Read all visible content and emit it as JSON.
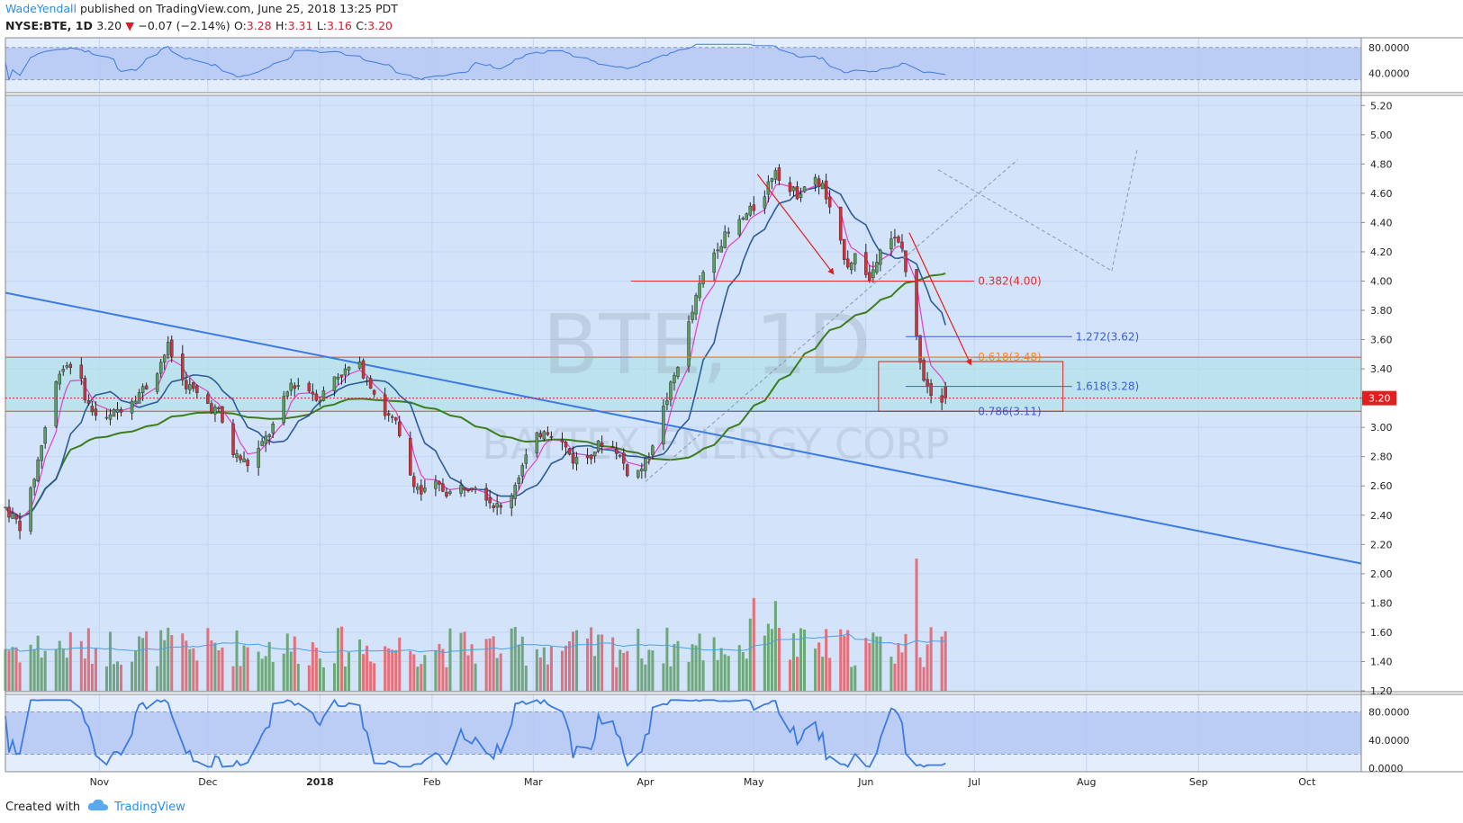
{
  "header": {
    "author": "WadeYendall",
    "published_text": "published on TradingView.com, June 25, 2018 13:25 PDT"
  },
  "symbol_line": {
    "symbol": "NYSE:BTE, 1D",
    "price": "3.20",
    "change": "−0.07 (−2.14%)",
    "o_label": "O:",
    "o": "3.28",
    "h_label": "H:",
    "h": "3.31",
    "l_label": "L:",
    "l": "3.16",
    "c_label": "C:",
    "c": "3.20"
  },
  "watermark": {
    "symbol": "BTE, 1D",
    "company": "BAYTEX ENERGY CORP"
  },
  "footer": {
    "created_with": "Created with",
    "brand": "TradingView"
  },
  "colors": {
    "pane_bg": "#d3e3f9",
    "grid": "#c2d5f2",
    "up": "#5c9e62",
    "down": "#d2313d",
    "vol_up": "#6da77a",
    "vol_down": "#e4707b",
    "trend": "#3d7be0",
    "sma_long": "#3c7d20",
    "ema_fast": "#e040c8",
    "ema_mid": "#2d5b99",
    "fib_red": "#e23030",
    "fib_orange": "#f28a1c",
    "fib_blue": "#3a60d6",
    "price_tag": "#e02020"
  },
  "chart_data": {
    "type": "candlestick",
    "price_axis_ticks": [
      "5.20",
      "5.00",
      "4.80",
      "4.60",
      "4.40",
      "4.20",
      "4.00",
      "3.80",
      "3.60",
      "3.40",
      "3.20",
      "3.00",
      "2.80",
      "2.60",
      "2.40",
      "2.20",
      "2.00",
      "1.80",
      "1.60",
      "1.40",
      "1.20"
    ],
    "price_tick_values": [
      5.2,
      5.0,
      4.8,
      4.6,
      4.4,
      4.2,
      4.0,
      3.8,
      3.6,
      3.4,
      3.2,
      3.0,
      2.8,
      2.6,
      2.4,
      2.2,
      2.0,
      1.8,
      1.6,
      1.4,
      1.2
    ],
    "x_axis_labels": [
      {
        "label": "Nov",
        "day": 26
      },
      {
        "label": "Dec",
        "day": 56
      },
      {
        "label": "2018",
        "day": 87
      },
      {
        "label": "Feb",
        "day": 118
      },
      {
        "label": "Mar",
        "day": 146
      },
      {
        "label": "Apr",
        "day": 177
      },
      {
        "label": "May",
        "day": 207
      },
      {
        "label": "Jun",
        "day": 238
      },
      {
        "label": "Jul",
        "day": 268
      },
      {
        "label": "Aug",
        "day": 299
      },
      {
        "label": "Sep",
        "day": 330
      },
      {
        "label": "Oct",
        "day": 360
      }
    ],
    "x_range_days": [
      0,
      375
    ],
    "last_price_label": "3.20",
    "last_price": 3.2,
    "price_range": [
      1.2,
      5.3
    ],
    "rsi_top": {
      "ticks": [
        "80.0000",
        "40.0000"
      ],
      "tick_values": [
        80,
        40
      ],
      "range": [
        10,
        95
      ],
      "band": [
        30,
        80
      ]
    },
    "stoch_bottom": {
      "ticks": [
        "80.0000",
        "40.0000",
        "0.0000"
      ],
      "tick_values": [
        80,
        40,
        0
      ],
      "range": [
        -5,
        105
      ],
      "band": [
        20,
        80
      ]
    },
    "fib_levels": [
      {
        "label": "0.382(4.00)",
        "value": 4.0,
        "color": "fib_red",
        "from_day": 173,
        "to_day": 268
      },
      {
        "label": "0.618(3.48)",
        "value": 3.48,
        "color": "fib_orange",
        "from_day": 173,
        "to_day": 268
      },
      {
        "label": "0.786(3.11)",
        "value": 3.11,
        "color": "fib_blue",
        "from_day": 173,
        "to_day": 268
      },
      {
        "label": "1.272(3.62)",
        "value": 3.62,
        "color": "fib_blue",
        "from_day": 249,
        "to_day": 295
      },
      {
        "label": "1.618(3.28)",
        "value": 3.28,
        "color": "fib_blue",
        "from_day": 249,
        "to_day": 295
      }
    ],
    "support_lines": [
      3.48,
      3.11
    ],
    "box": {
      "day0": 241.5,
      "day1": 292.5,
      "p0": 3.11,
      "p1": 3.45
    },
    "trendline": {
      "d0": 0,
      "p0": 3.92,
      "d1": 375,
      "p1": 2.07
    },
    "candles": []
  }
}
